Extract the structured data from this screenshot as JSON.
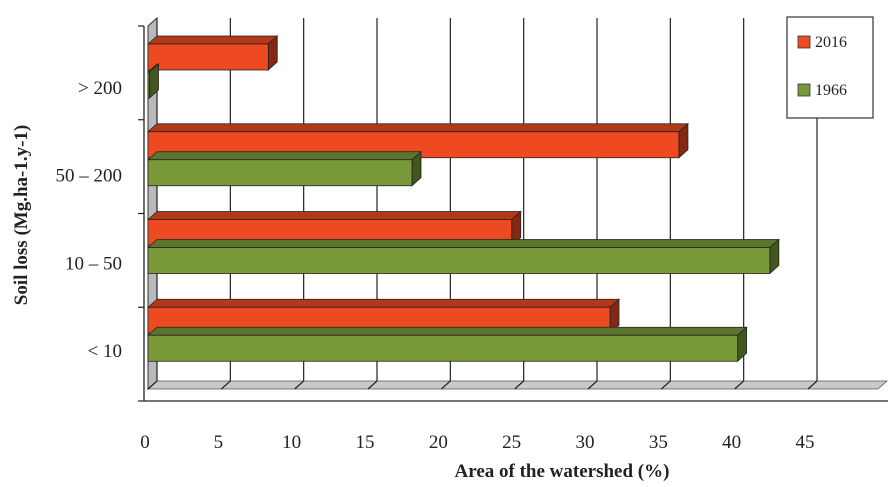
{
  "chart_data": {
    "type": "bar",
    "orientation": "horizontal",
    "style": "3d",
    "categories": [
      "< 10",
      "10 – 50",
      "50 – 200",
      "> 200"
    ],
    "series": [
      {
        "name": "2016",
        "values": [
          31.5,
          24.8,
          36.2,
          8.2
        ],
        "color": "#ee4a22"
      },
      {
        "name": "1966",
        "values": [
          40.2,
          42.4,
          18.0,
          0.1
        ],
        "color": "#7a9a3a"
      }
    ],
    "xlabel": "Area of the watershed (%)",
    "ylabel": "Soil loss (Mg.ha-1.y-1)",
    "xlim": [
      0,
      45
    ],
    "xticks": [
      "0",
      "5",
      "10",
      "15",
      "20",
      "25",
      "30",
      "35",
      "40",
      "45"
    ],
    "grid": true,
    "legend_position": "top-right"
  }
}
